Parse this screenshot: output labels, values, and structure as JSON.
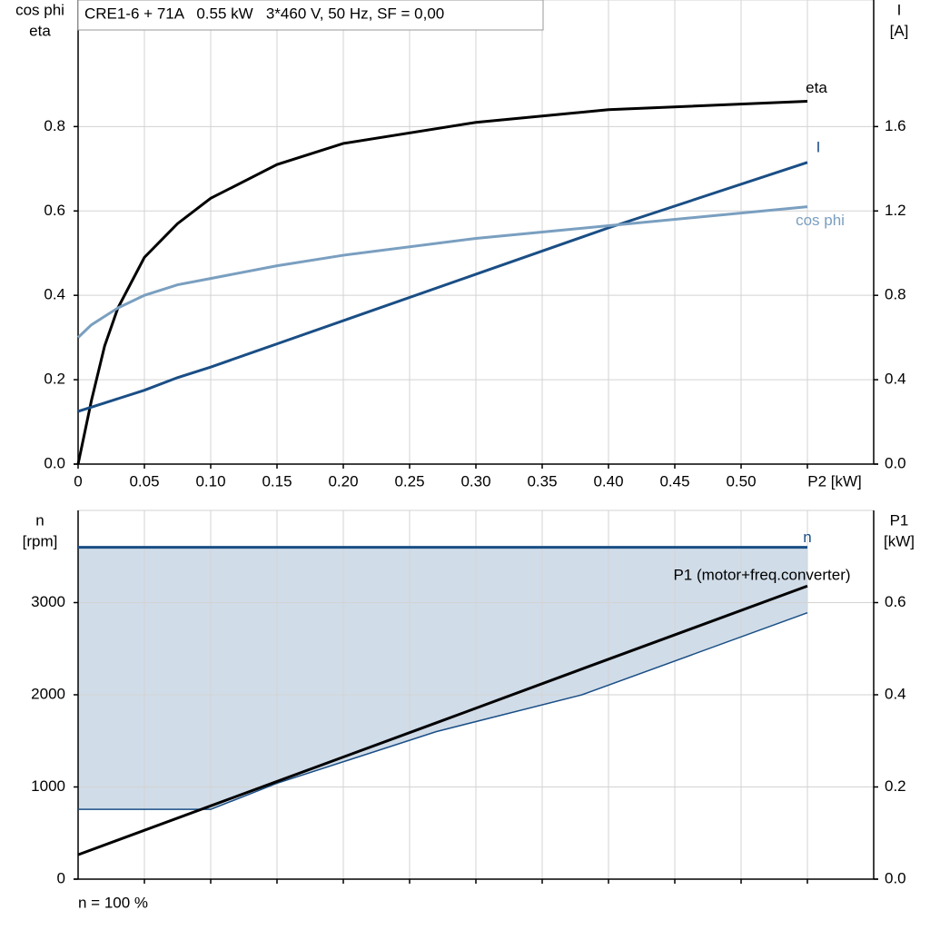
{
  "chart_data": [
    {
      "type": "line",
      "title": "CRE1-6 + 71A   0.55 kW   3*460 V, 50 Hz, SF = 0,00",
      "ylabel": [
        "cos phi",
        "eta"
      ],
      "y2label": [
        "I",
        "[A]"
      ],
      "x": [
        0,
        0.01,
        0.02,
        0.03,
        0.05,
        0.075,
        0.1,
        0.15,
        0.2,
        0.3,
        0.4,
        0.55
      ],
      "xlim": [
        0,
        0.6
      ],
      "xticks": [
        {
          "value": 0,
          "label": "0"
        },
        0.05,
        {
          "value": 0.1,
          "label": "0.10"
        },
        0.15,
        {
          "value": 0.2,
          "label": "0.20"
        },
        0.25,
        {
          "value": 0.3,
          "label": "0.30"
        },
        0.35,
        {
          "value": 0.4,
          "label": "0.40"
        },
        0.45,
        {
          "value": 0.5,
          "label": "0.50"
        },
        {
          "value": 0.55,
          "label": "P2 [kW]"
        }
      ],
      "ylim": [
        0,
        1.1
      ],
      "yticks": [
        {
          "value": 0,
          "label": "0.0"
        },
        0.2,
        0.4,
        0.6,
        0.8
      ],
      "y2lim": [
        0,
        2.2
      ],
      "y2ticks": [
        {
          "value": 0,
          "label": "0.0"
        },
        0.4,
        0.8,
        1.2,
        1.6
      ],
      "grid": true,
      "series": [
        {
          "name": "eta",
          "color": "#000000",
          "values": [
            0,
            0.15,
            0.28,
            0.37,
            0.49,
            0.57,
            0.63,
            0.71,
            0.76,
            0.81,
            0.84,
            0.86
          ]
        },
        {
          "name": "I",
          "color": "#1a4e85",
          "axis": "y2",
          "values": [
            0.25,
            0.27,
            0.29,
            0.31,
            0.35,
            0.41,
            0.46,
            0.57,
            0.68,
            0.9,
            1.12,
            1.43
          ]
        },
        {
          "name": "cos phi",
          "color": "#7a9fc0",
          "values": [
            0.3,
            0.33,
            0.35,
            0.37,
            0.4,
            0.425,
            0.44,
            0.47,
            0.495,
            0.535,
            0.565,
            0.61
          ]
        }
      ]
    },
    {
      "type": "line",
      "ylabel": [
        "n",
        "[rpm]"
      ],
      "y2label": [
        "P1",
        "[kW]"
      ],
      "note": "n = 100 %",
      "x": [
        0,
        0.1,
        0.15,
        0.27,
        0.38,
        0.55
      ],
      "xlim": [
        0,
        0.6
      ],
      "xticks": [
        0.05,
        0.1,
        0.15,
        0.2,
        0.25,
        0.3,
        0.35,
        0.4,
        0.45,
        0.5,
        0.55
      ],
      "ylim": [
        0,
        4000
      ],
      "yticks": [
        0,
        1000,
        2000,
        3000
      ],
      "y2lim": [
        0,
        0.8
      ],
      "y2ticks": [
        {
          "value": 0,
          "label": "0.0"
        },
        0.2,
        0.4,
        0.6
      ],
      "grid": true,
      "series": [
        {
          "name": "n",
          "color": "#1a4e85",
          "values": [
            3600,
            3600,
            3600,
            3600,
            3600,
            3600
          ]
        },
        {
          "color": "#1a4e85",
          "fill": "#d0dce8",
          "values": [
            757,
            757,
            1040,
            1600,
            2000,
            2890
          ]
        },
        {
          "name": "P1 (motor+freq.converter)",
          "color": "#000000",
          "axis": "y2",
          "values": [
            0.053,
            0.159,
            0.212,
            0.339,
            0.456,
            0.636
          ]
        }
      ]
    }
  ]
}
